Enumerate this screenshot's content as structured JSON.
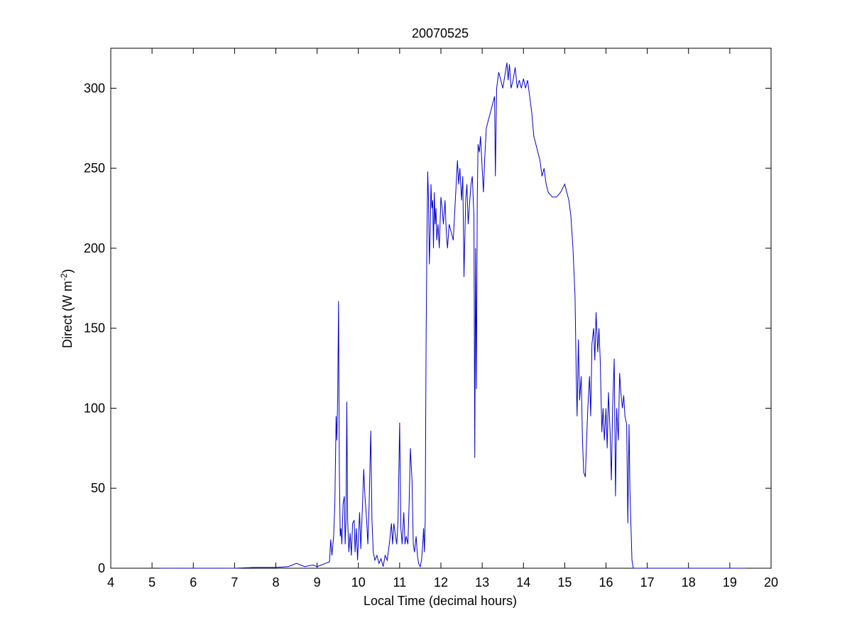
{
  "chart_data": {
    "type": "line",
    "title": "20070525",
    "xlabel": "Local Time (decimal hours)",
    "ylabel_main": "Direct (W m",
    "ylabel_sup": "-2",
    "ylabel_close": ")",
    "xlim": [
      4,
      20
    ],
    "ylim": [
      0,
      325
    ],
    "xticks": [
      4,
      5,
      6,
      7,
      8,
      9,
      10,
      11,
      12,
      13,
      14,
      15,
      16,
      17,
      18,
      19,
      20
    ],
    "yticks": [
      0,
      50,
      100,
      150,
      200,
      250,
      300
    ],
    "grid": false,
    "line_color": "#0000cc",
    "series": [
      {
        "points": [
          [
            5.2,
            0
          ],
          [
            6.0,
            0
          ],
          [
            7.0,
            0
          ],
          [
            7.5,
            0.5
          ],
          [
            8.0,
            0.5
          ],
          [
            8.3,
            1
          ],
          [
            8.5,
            3
          ],
          [
            8.7,
            1
          ],
          [
            8.9,
            2
          ],
          [
            9.0,
            1
          ],
          [
            9.1,
            2
          ],
          [
            9.2,
            3
          ],
          [
            9.3,
            4
          ],
          [
            9.33,
            18
          ],
          [
            9.36,
            8
          ],
          [
            9.4,
            20
          ],
          [
            9.43,
            40
          ],
          [
            9.46,
            95
          ],
          [
            9.48,
            80
          ],
          [
            9.5,
            110
          ],
          [
            9.52,
            167
          ],
          [
            9.54,
            60
          ],
          [
            9.56,
            20
          ],
          [
            9.58,
            25
          ],
          [
            9.6,
            15
          ],
          [
            9.63,
            40
          ],
          [
            9.66,
            45
          ],
          [
            9.68,
            15
          ],
          [
            9.7,
            30
          ],
          [
            9.72,
            104
          ],
          [
            9.74,
            30
          ],
          [
            9.77,
            10
          ],
          [
            9.8,
            22
          ],
          [
            9.83,
            8
          ],
          [
            9.86,
            28
          ],
          [
            9.9,
            30
          ],
          [
            9.92,
            10
          ],
          [
            9.95,
            25
          ],
          [
            9.98,
            5
          ],
          [
            10.0,
            18
          ],
          [
            10.03,
            35
          ],
          [
            10.06,
            12
          ],
          [
            10.1,
            40
          ],
          [
            10.13,
            62
          ],
          [
            10.16,
            45
          ],
          [
            10.2,
            30
          ],
          [
            10.23,
            15
          ],
          [
            10.26,
            40
          ],
          [
            10.3,
            86
          ],
          [
            10.33,
            30
          ],
          [
            10.36,
            10
          ],
          [
            10.4,
            5
          ],
          [
            10.45,
            8
          ],
          [
            10.5,
            3
          ],
          [
            10.55,
            6
          ],
          [
            10.6,
            1
          ],
          [
            10.65,
            8
          ],
          [
            10.7,
            5
          ],
          [
            10.75,
            15
          ],
          [
            10.8,
            28
          ],
          [
            10.83,
            15
          ],
          [
            10.86,
            28
          ],
          [
            10.9,
            20
          ],
          [
            10.93,
            15
          ],
          [
            10.96,
            30
          ],
          [
            11.0,
            91
          ],
          [
            11.03,
            25
          ],
          [
            11.06,
            15
          ],
          [
            11.1,
            35
          ],
          [
            11.13,
            15
          ],
          [
            11.16,
            20
          ],
          [
            11.2,
            15
          ],
          [
            11.23,
            40
          ],
          [
            11.26,
            75
          ],
          [
            11.3,
            55
          ],
          [
            11.33,
            15
          ],
          [
            11.36,
            10
          ],
          [
            11.4,
            20
          ],
          [
            11.43,
            8
          ],
          [
            11.46,
            3
          ],
          [
            11.5,
            1
          ],
          [
            11.53,
            5
          ],
          [
            11.56,
            15
          ],
          [
            11.58,
            25
          ],
          [
            11.6,
            10
          ],
          [
            11.62,
            30
          ],
          [
            11.64,
            140
          ],
          [
            11.66,
            200
          ],
          [
            11.68,
            248
          ],
          [
            11.7,
            230
          ],
          [
            11.72,
            190
          ],
          [
            11.74,
            210
          ],
          [
            11.76,
            240
          ],
          [
            11.78,
            225
          ],
          [
            11.8,
            230
          ],
          [
            11.82,
            200
          ],
          [
            11.84,
            235
          ],
          [
            11.86,
            215
          ],
          [
            11.88,
            225
          ],
          [
            11.9,
            205
          ],
          [
            11.93,
            215
          ],
          [
            11.96,
            200
          ],
          [
            12.0,
            232
          ],
          [
            12.03,
            225
          ],
          [
            12.06,
            215
          ],
          [
            12.1,
            230
          ],
          [
            12.13,
            210
          ],
          [
            12.16,
            200
          ],
          [
            12.2,
            215
          ],
          [
            12.25,
            210
          ],
          [
            12.3,
            205
          ],
          [
            12.35,
            230
          ],
          [
            12.4,
            255
          ],
          [
            12.43,
            240
          ],
          [
            12.46,
            250
          ],
          [
            12.5,
            230
          ],
          [
            12.53,
            245
          ],
          [
            12.56,
            182
          ],
          [
            12.6,
            230
          ],
          [
            12.63,
            240
          ],
          [
            12.66,
            215
          ],
          [
            12.7,
            230
          ],
          [
            12.73,
            240
          ],
          [
            12.76,
            245
          ],
          [
            12.8,
            220
          ],
          [
            12.82,
            69
          ],
          [
            12.84,
            200
          ],
          [
            12.86,
            112
          ],
          [
            12.88,
            230
          ],
          [
            12.9,
            265
          ],
          [
            12.93,
            260
          ],
          [
            12.96,
            270
          ],
          [
            13.0,
            250
          ],
          [
            13.03,
            235
          ],
          [
            13.06,
            255
          ],
          [
            13.1,
            275
          ],
          [
            13.15,
            280
          ],
          [
            13.2,
            285
          ],
          [
            13.25,
            290
          ],
          [
            13.3,
            295
          ],
          [
            13.32,
            245
          ],
          [
            13.35,
            300
          ],
          [
            13.4,
            310
          ],
          [
            13.45,
            305
          ],
          [
            13.5,
            300
          ],
          [
            13.55,
            308
          ],
          [
            13.6,
            316
          ],
          [
            13.63,
            305
          ],
          [
            13.66,
            315
          ],
          [
            13.7,
            300
          ],
          [
            13.75,
            305
          ],
          [
            13.8,
            313
          ],
          [
            13.85,
            300
          ],
          [
            13.9,
            305
          ],
          [
            13.95,
            300
          ],
          [
            14.0,
            306
          ],
          [
            14.05,
            300
          ],
          [
            14.1,
            305
          ],
          [
            14.15,
            295
          ],
          [
            14.2,
            285
          ],
          [
            14.25,
            270
          ],
          [
            14.3,
            265
          ],
          [
            14.35,
            260
          ],
          [
            14.4,
            255
          ],
          [
            14.45,
            245
          ],
          [
            14.5,
            250
          ],
          [
            14.55,
            240
          ],
          [
            14.6,
            235
          ],
          [
            14.7,
            232
          ],
          [
            14.8,
            232
          ],
          [
            14.9,
            235
          ],
          [
            15.0,
            240
          ],
          [
            15.05,
            235
          ],
          [
            15.1,
            230
          ],
          [
            15.15,
            220
          ],
          [
            15.2,
            200
          ],
          [
            15.25,
            170
          ],
          [
            15.28,
            120
          ],
          [
            15.3,
            95
          ],
          [
            15.33,
            143
          ],
          [
            15.36,
            105
          ],
          [
            15.4,
            120
          ],
          [
            15.43,
            80
          ],
          [
            15.46,
            60
          ],
          [
            15.5,
            57
          ],
          [
            15.53,
            80
          ],
          [
            15.56,
            100
          ],
          [
            15.6,
            120
          ],
          [
            15.63,
            95
          ],
          [
            15.66,
            140
          ],
          [
            15.7,
            150
          ],
          [
            15.73,
            130
          ],
          [
            15.76,
            160
          ],
          [
            15.8,
            135
          ],
          [
            15.83,
            150
          ],
          [
            15.86,
            130
          ],
          [
            15.9,
            85
          ],
          [
            15.93,
            100
          ],
          [
            15.96,
            80
          ],
          [
            16.0,
            100
          ],
          [
            16.03,
            75
          ],
          [
            16.06,
            110
          ],
          [
            16.1,
            85
          ],
          [
            16.13,
            55
          ],
          [
            16.16,
            100
          ],
          [
            16.2,
            131
          ],
          [
            16.23,
            45
          ],
          [
            16.26,
            100
          ],
          [
            16.3,
            80
          ],
          [
            16.33,
            122
          ],
          [
            16.36,
            110
          ],
          [
            16.4,
            100
          ],
          [
            16.43,
            108
          ],
          [
            16.46,
            95
          ],
          [
            16.5,
            90
          ],
          [
            16.53,
            28
          ],
          [
            16.56,
            90
          ],
          [
            16.58,
            50
          ],
          [
            16.6,
            30
          ],
          [
            16.63,
            5
          ],
          [
            16.66,
            0
          ],
          [
            17.0,
            0
          ],
          [
            18.0,
            0
          ],
          [
            19.0,
            0
          ],
          [
            19.4,
            0
          ]
        ]
      }
    ]
  }
}
